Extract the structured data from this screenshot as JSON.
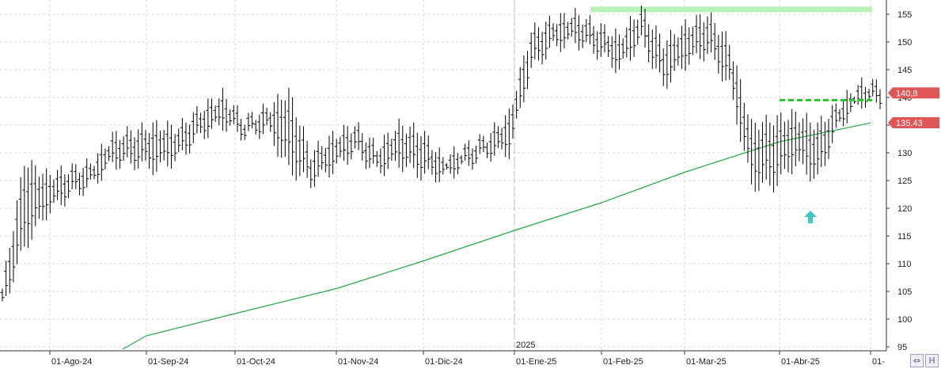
{
  "chart_data": {
    "type": "ohlc",
    "title": "",
    "xlabel": "",
    "ylabel": "",
    "ylim": [
      94,
      157
    ],
    "x_ticks": [
      "01-Ago-24",
      "01-Sep-24",
      "01-Oct-24",
      "01-Nov-24",
      "01-Dic-24",
      "01-Ene-25",
      "01-Feb-25",
      "01-Mar-25",
      "01-Abr-25",
      "01-"
    ],
    "y_ticks": [
      95,
      100,
      105,
      110,
      115,
      120,
      125,
      130,
      135,
      140,
      145,
      150,
      155
    ],
    "year_label": "2025",
    "price_label": "140,8",
    "ma_label": "135,43",
    "colors": {
      "bars": "#000000",
      "ma": "#22aa44",
      "resistance": "#b8f0b8",
      "support": "#22cc22",
      "arrow": "#3cc8c8",
      "label_bg": "#e05555",
      "grid": "#d8d8d8"
    },
    "resistance_level": 155.8,
    "support_level": 139.5,
    "moving_average": [
      {
        "x": "01-Ago-24",
        "y": 93.5
      },
      {
        "x": "01-Sep-24",
        "y": 97.0
      },
      {
        "x": "01-Oct-24",
        "y": 101.0
      },
      {
        "x": "01-Nov-24",
        "y": 105.5
      },
      {
        "x": "01-Dic-24",
        "y": 110.5
      },
      {
        "x": "01-Ene-25",
        "y": 116.0
      },
      {
        "x": "01-Feb-25",
        "y": 121.0
      },
      {
        "x": "01-Mar-25",
        "y": 126.5
      },
      {
        "x": "01-Abr-25",
        "y": 132.0
      },
      {
        "x": "01-",
        "y": 135.4
      }
    ],
    "price_series": [
      {
        "x": "Jul-24",
        "h": 105.5,
        "l": 102
      },
      {
        "x": "Jul-24",
        "h": 128.5,
        "l": 113
      },
      {
        "x": "Jul-24",
        "h": 126,
        "l": 119
      },
      {
        "x": "01-Ago-24",
        "h": 127,
        "l": 122
      },
      {
        "x": "Ago-24",
        "h": 128,
        "l": 124
      },
      {
        "x": "Ago-24",
        "h": 133,
        "l": 128
      },
      {
        "x": "Ago-24",
        "h": 134,
        "l": 128
      },
      {
        "x": "01-Sep-24",
        "h": 135,
        "l": 127
      },
      {
        "x": "Sep-24",
        "h": 134.5,
        "l": 129
      },
      {
        "x": "Sep-24",
        "h": 138,
        "l": 133
      },
      {
        "x": "01-Oct-24",
        "h": 140.5,
        "l": 135
      },
      {
        "x": "Oct-24",
        "h": 136,
        "l": 133
      },
      {
        "x": "Oct-24",
        "h": 138,
        "l": 134
      },
      {
        "x": "Oct-24",
        "h": 141,
        "l": 127
      },
      {
        "x": "Oct-24",
        "h": 130,
        "l": 124.5
      },
      {
        "x": "01-Nov-24",
        "h": 133,
        "l": 127
      },
      {
        "x": "Nov-24",
        "h": 135,
        "l": 130
      },
      {
        "x": "Nov-24",
        "h": 131,
        "l": 126.5
      },
      {
        "x": "Nov-24",
        "h": 135,
        "l": 128
      },
      {
        "x": "01-Dic-24",
        "h": 134,
        "l": 126
      },
      {
        "x": "Dic-24",
        "h": 129,
        "l": 125.5
      },
      {
        "x": "Dic-24",
        "h": 131,
        "l": 127.5
      },
      {
        "x": "01-Ene-25",
        "h": 133,
        "l": 129.5
      },
      {
        "x": "Ene-25",
        "h": 137,
        "l": 130
      },
      {
        "x": "Ene-25",
        "h": 152,
        "l": 145
      },
      {
        "x": "Ene-25",
        "h": 154,
        "l": 149
      },
      {
        "x": "01-Feb-25",
        "h": 155,
        "l": 150
      },
      {
        "x": "Feb-25",
        "h": 153,
        "l": 148
      },
      {
        "x": "Feb-25",
        "h": 151,
        "l": 145
      },
      {
        "x": "Feb-25",
        "h": 156,
        "l": 150
      },
      {
        "x": "01-Mar-25",
        "h": 150,
        "l": 142
      },
      {
        "x": "Mar-25",
        "h": 153,
        "l": 146
      },
      {
        "x": "Mar-25",
        "h": 155,
        "l": 148
      },
      {
        "x": "Mar-25",
        "h": 150,
        "l": 142
      },
      {
        "x": "01-Abr-25",
        "h": 135,
        "l": 124
      },
      {
        "x": "Abr-25",
        "h": 136,
        "l": 124
      },
      {
        "x": "Abr-25",
        "h": 137,
        "l": 128
      },
      {
        "x": "Abr-25",
        "h": 135,
        "l": 125
      },
      {
        "x": "Abr-25",
        "h": 139,
        "l": 135
      },
      {
        "x": "01-",
        "h": 142.5,
        "l": 139
      }
    ]
  },
  "toolbar": {
    "h_icon": "h-icon",
    "zoom_icon": "arrows-icon"
  }
}
